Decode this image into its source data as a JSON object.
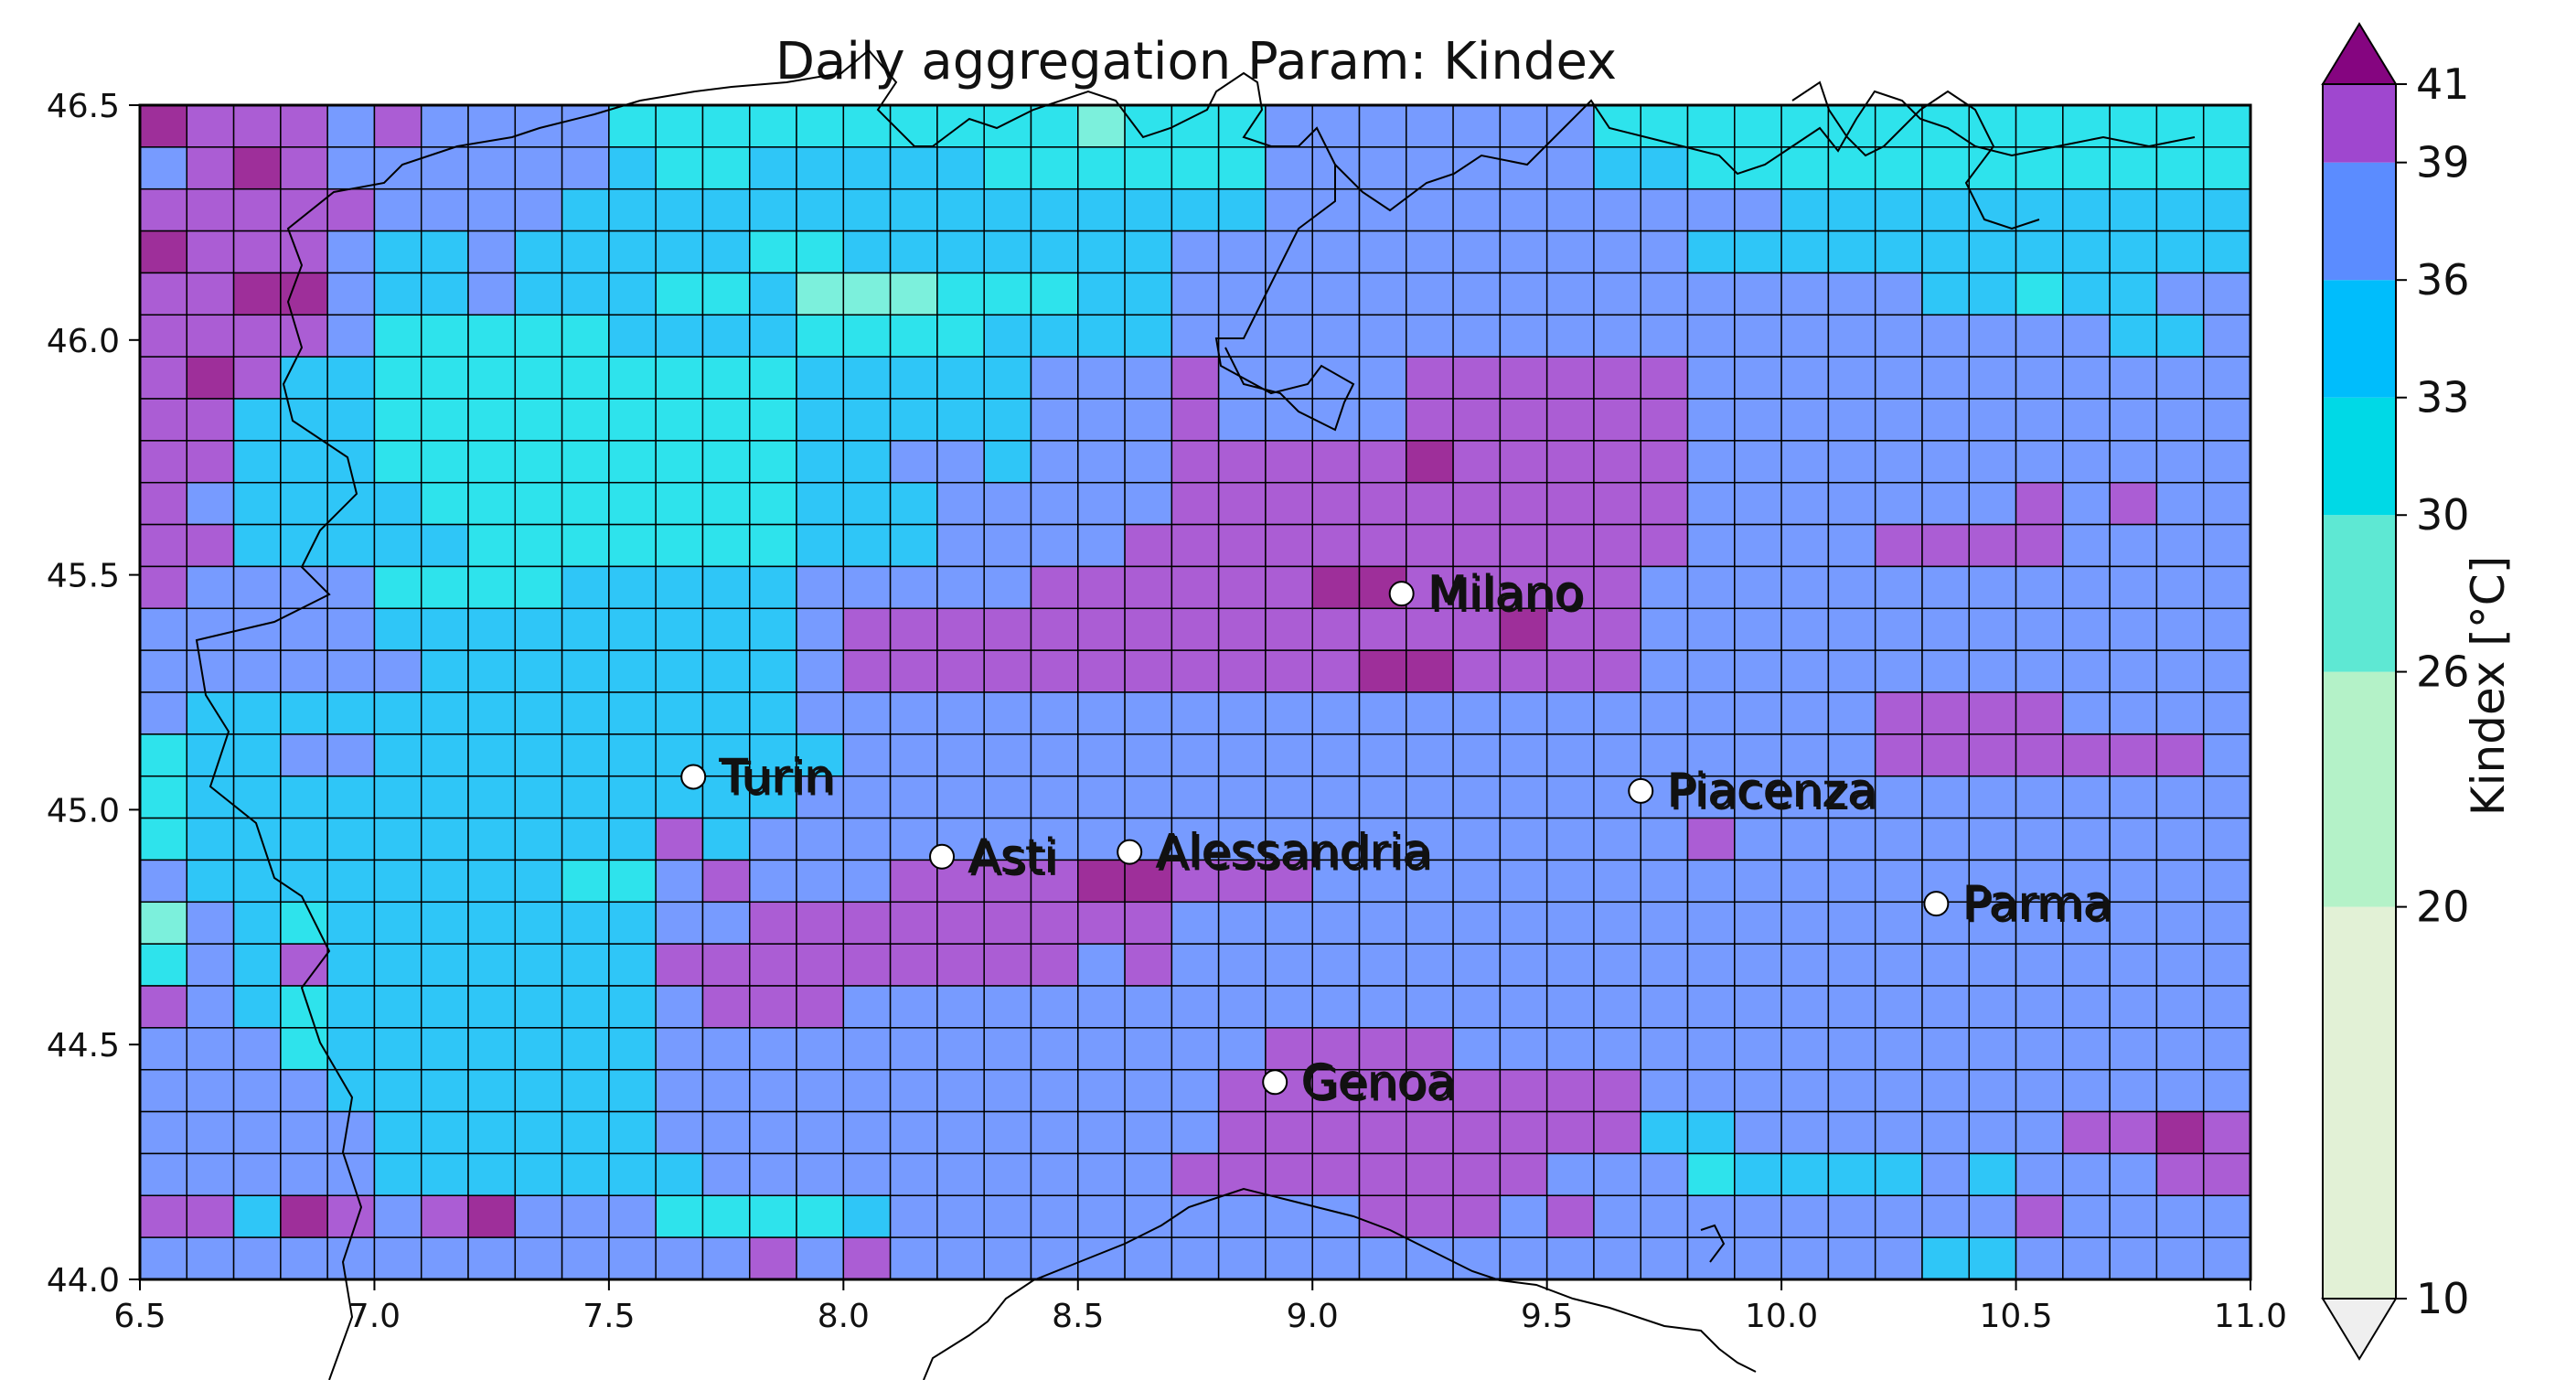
{
  "chart_data": {
    "type": "heatmap",
    "title": "Daily aggregation Param: Kindex",
    "xlabel": "",
    "ylabel": "",
    "xlim": [
      6.5,
      11.0
    ],
    "ylim": [
      44.0,
      46.5
    ],
    "grid_step": 0.1,
    "x_ticks": [
      "6.5",
      "7.0",
      "7.5",
      "8.0",
      "8.5",
      "9.0",
      "9.5",
      "10.0",
      "10.5",
      "11.0"
    ],
    "y_ticks": [
      "44.0",
      "44.5",
      "45.0",
      "45.5",
      "46.0",
      "46.5"
    ],
    "colorbar": {
      "label": "Kindex [°C]",
      "boundaries": [
        10,
        20,
        26,
        30,
        33,
        36,
        39,
        41
      ],
      "tick_labels": [
        "10",
        "20",
        "26",
        "30",
        "33",
        "36",
        "39",
        "41"
      ],
      "colors": [
        "#e2f1d6",
        "#b4f2c8",
        "#5ee8d3",
        "#00d9e6",
        "#00bdfc",
        "#5b8cff",
        "#9f47cf"
      ],
      "under_color": "#efefef",
      "over_color": "#850580",
      "extend": "both"
    },
    "class_legend": {
      "A": "aqua 26–30",
      "C": "cyan 30–33",
      "S": "sky 33–36",
      "B": "blue 36–39",
      "P": "purple 39–41",
      "M": "magenta >41"
    },
    "class_colors": {
      "A": "#7cf0dc",
      "C": "#2ee3ec",
      "S": "#2fc6f7",
      "B": "#779bff",
      "P": "#ab5dd4",
      "M": "#9e2f9a"
    },
    "rows_north_to_south": [
      "MPPPBPBBBBCCCCCCCCCCACCCBBBBBBBCCCCCCCCCCCCCCCCS",
      "BPMPBBBBBBSCCSSSSSCCCCCCBBBBBBBSSCCCCCCCCCCCCCCS",
      "PPPPPBBBBSSSSSSSSSSSSSSSBBBBBBBBBBBSSSSSSSSSSSSS",
      "MPPPBSSBSSSSSCCSSSSSSSBBBBBBBBBBBSSSSSSSSSSSSSSS",
      "PPMMBSSBSSSCCSAAACCCSSBBBBBBBBBBBBBBBBSSCSSBBSSA",
      "PPPPBCCCCCSSSSCCCCSSSSBBBBBBBBBBBBBBBBBBBBSSBBSS",
      "PMPSSCCCCCCCCCSSSSSBBBPBBBBPPPPPPBBBBBBBBBBBBBBB",
      "PPSSSCCCCCCCCCSSSSSBBBPBBBBPPPPPPBBBBBBBBBBBBBBB",
      "PPSSSCCCCCCCCCSSBBSBBBPPPPPMPPPPPBBBBBBBBBBBBBBB",
      "PBSSSSCCCCCCCCSSSBBBBBPPPPPPPPPPPBBBBBBBPBPBBBBB",
      "PPSSSSSCCCCCCCSSSBBBBPPPPPPPPPPPPBBBBPPPPBBBBBBB",
      "PBBBBCCCCSSSSSBBBBBPPPPPPMMPPPPPBBBBBBBBBBBBBPPBB",
      "BBBBBSSSSSSSSSBPPPPPPPPPPPPPPMPPBBBBBBBBBBBBBBBBB",
      "BBBBBBSSSSSSSSBPPPPPPPPPPPMMPPPPBBBBBBBBBBBBBBBB",
      "BSSSSSSSSSSSSSBBBBBBBBBBBBBBBBBBBBBBBPPPPBBBBBBB",
      "CSSBBSSSSSSSSSSBBBBBBBBBBBBBBBBBBBBBBPPPPPPPBBBBB",
      "CSSSSSSSSSSSSSBBBBBBBBBBBBBBBBBBBBBBBBBBBBBBBBBBB",
      "CSSSSSSSSSSPSBBBBBBBBBBBBBBBBBBBBPBBBBBBBBBBBBBBB",
      "BSSSSSSSSCCBPBBBPPPPMMPPPBBBBBBBBBBBBBBBBBBBBBBBB",
      "ABSCSSSSSSSBBPPPPPPPPPBBBBBBBBBBBBBBBBBBBBBBBBBBB",
      "CBSPSSSSSSSPPPPPPPPPBPBBBBBBBBBBBBBBBBBBBBBBBBBBB",
      "PBSCSSSSSSSBPPPBBBBBBBBBBBBBBBBBBBBBBBBBBBBBBBPBBB",
      "BBBCSSSSSSSBBBBBBBBBBBBBPPPPBBBBBBBBBBBBBBBBBBPPBB",
      "BBBBSSSSSSSBBBBBBBBBBBBPPPPPPPPPBBBBBBBBBBBBBBPPPBB",
      "BBBBBSSSSSSBBBBBBBBBBBBPPPPPPPPPSSBBBBBBBPPMPPBB",
      "BBBBBSSSSSSSBBBBBBBBBBPPPPPPPPBBBCSSSSBSBBBPPPPB",
      "PPSMPBPMBBBCCCCSBBBBBBBBBBPPPBPBBBBBBBBBPBBBBBBB",
      "BBBBBBBBBBBBBPBPBBBBBBBBBBBBBBBBBBBBBBSSBBBBBBBB"
    ],
    "cities": [
      {
        "name": "Milano",
        "lon": 9.19,
        "lat": 45.46
      },
      {
        "name": "Turin",
        "lon": 7.68,
        "lat": 45.07
      },
      {
        "name": "Piacenza",
        "lon": 9.7,
        "lat": 45.04
      },
      {
        "name": "Asti",
        "lon": 8.21,
        "lat": 44.9
      },
      {
        "name": "Alessandria",
        "lon": 8.61,
        "lat": 44.91
      },
      {
        "name": "Parma",
        "lon": 10.33,
        "lat": 44.8
      },
      {
        "name": "Genoa",
        "lon": 8.92,
        "lat": 44.42
      }
    ]
  }
}
